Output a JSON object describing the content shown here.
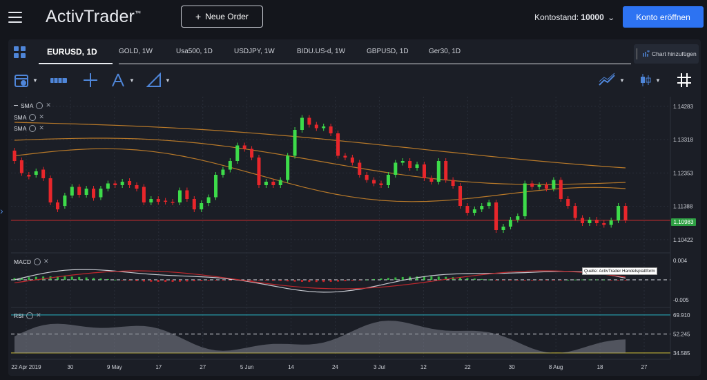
{
  "header": {
    "logo": "ActivTrader",
    "logo_mark": "™",
    "new_order_label": "Neue Order",
    "balance_label": "Kontostand:",
    "balance_value": "10000",
    "open_account_label": "Konto eröffnen"
  },
  "tabs": [
    {
      "label": "EURUSD, 1D",
      "active": true
    },
    {
      "label": "GOLD, 1W"
    },
    {
      "label": "Usa500, 1D"
    },
    {
      "label": "USDJPY, 1W"
    },
    {
      "label": "BIDU.US-d, 1W"
    },
    {
      "label": "GBPUSD, 1D"
    },
    {
      "label": "Ger30, 1D"
    }
  ],
  "add_chart_label": "Chart hinzufügen",
  "indicators": {
    "sma1": "SMA",
    "sma2": "SMA",
    "sma3": "SMA",
    "macd": "MACD",
    "rsi": "RSI"
  },
  "source_label": "Quelle: ActivTrader Handelsplattform",
  "price_axis": [
    "1.14283",
    "1.13318",
    "1.12353",
    "1.11388",
    "1.10422"
  ],
  "current_price": "1.10983",
  "macd_axis": [
    "0.004",
    "-0.005"
  ],
  "rsi_axis": [
    "69.910",
    "52.245",
    "34.585"
  ],
  "date_axis": [
    "22 Apr 2019",
    "30",
    "9 May",
    "17",
    "27",
    "5 Jun",
    "14",
    "24",
    "3 Jul",
    "12",
    "22",
    "30",
    "8 Aug",
    "18",
    "27"
  ],
  "colors": {
    "accent": "#2d73f2",
    "up": "#3ddc4a",
    "down": "#e8262b",
    "sma_orange": "#d48a2a",
    "current_line": "#d32f2f",
    "price_tag": "#2ea043"
  },
  "chart_data": {
    "type": "candlestick",
    "symbol": "EURUSD",
    "timeframe": "1D",
    "ylim": [
      1.1012,
      1.144
    ],
    "candles": [
      {
        "o": 1.13,
        "c": 1.127
      },
      {
        "o": 1.1272,
        "c": 1.1235
      },
      {
        "o": 1.123,
        "c": 1.1225
      },
      {
        "o": 1.123,
        "c": 1.124
      },
      {
        "o": 1.1245,
        "c": 1.122
      },
      {
        "o": 1.122,
        "c": 1.115
      },
      {
        "o": 1.115,
        "c": 1.113
      },
      {
        "o": 1.114,
        "c": 1.117
      },
      {
        "o": 1.117,
        "c": 1.1195
      },
      {
        "o": 1.1195,
        "c": 1.1172
      },
      {
        "o": 1.1172,
        "c": 1.119
      },
      {
        "o": 1.119,
        "c": 1.1163
      },
      {
        "o": 1.1165,
        "c": 1.119
      },
      {
        "o": 1.119,
        "c": 1.1205
      },
      {
        "o": 1.1205,
        "c": 1.12
      },
      {
        "o": 1.12,
        "c": 1.121
      },
      {
        "o": 1.1212,
        "c": 1.12
      },
      {
        "o": 1.12,
        "c": 1.119
      },
      {
        "o": 1.1195,
        "c": 1.115
      },
      {
        "o": 1.115,
        "c": 1.116
      },
      {
        "o": 1.116,
        "c": 1.1152
      },
      {
        "o": 1.1155,
        "c": 1.1152
      },
      {
        "o": 1.1152,
        "c": 1.115
      },
      {
        "o": 1.115,
        "c": 1.1185
      },
      {
        "o": 1.1185,
        "c": 1.116
      },
      {
        "o": 1.116,
        "c": 1.113
      },
      {
        "o": 1.113,
        "c": 1.1148
      },
      {
        "o": 1.1148,
        "c": 1.1165
      },
      {
        "o": 1.1165,
        "c": 1.123
      },
      {
        "o": 1.123,
        "c": 1.1245
      },
      {
        "o": 1.1245,
        "c": 1.127
      },
      {
        "o": 1.127,
        "c": 1.1315
      },
      {
        "o": 1.1315,
        "c": 1.1305
      },
      {
        "o": 1.1305,
        "c": 1.128
      },
      {
        "o": 1.128,
        "c": 1.12
      },
      {
        "o": 1.12,
        "c": 1.121
      },
      {
        "o": 1.121,
        "c": 1.12
      },
      {
        "o": 1.12,
        "c": 1.1215
      },
      {
        "o": 1.1215,
        "c": 1.1285
      },
      {
        "o": 1.1285,
        "c": 1.136
      },
      {
        "o": 1.136,
        "c": 1.1395
      },
      {
        "o": 1.1395,
        "c": 1.1375
      },
      {
        "o": 1.1375,
        "c": 1.1365
      },
      {
        "o": 1.1365,
        "c": 1.137
      },
      {
        "o": 1.137,
        "c": 1.135
      },
      {
        "o": 1.135,
        "c": 1.1285
      },
      {
        "o": 1.1285,
        "c": 1.128
      },
      {
        "o": 1.128,
        "c": 1.1265
      },
      {
        "o": 1.1265,
        "c": 1.123
      },
      {
        "o": 1.123,
        "c": 1.1215
      },
      {
        "o": 1.1215,
        "c": 1.1205
      },
      {
        "o": 1.1205,
        "c": 1.12
      },
      {
        "o": 1.12,
        "c": 1.123
      },
      {
        "o": 1.123,
        "c": 1.1265
      },
      {
        "o": 1.1265,
        "c": 1.127
      },
      {
        "o": 1.127,
        "c": 1.125
      },
      {
        "o": 1.125,
        "c": 1.126
      },
      {
        "o": 1.126,
        "c": 1.122
      },
      {
        "o": 1.122,
        "c": 1.121
      },
      {
        "o": 1.121,
        "c": 1.127
      },
      {
        "o": 1.127,
        "c": 1.1215
      },
      {
        "o": 1.1215,
        "c": 1.1198
      },
      {
        "o": 1.1198,
        "c": 1.114
      },
      {
        "o": 1.114,
        "c": 1.112
      },
      {
        "o": 1.112,
        "c": 1.113
      },
      {
        "o": 1.113,
        "c": 1.114
      },
      {
        "o": 1.114,
        "c": 1.115
      },
      {
        "o": 1.115,
        "c": 1.107
      },
      {
        "o": 1.107,
        "c": 1.108
      },
      {
        "o": 1.108,
        "c": 1.11
      },
      {
        "o": 1.11,
        "c": 1.111
      },
      {
        "o": 1.111,
        "c": 1.1205
      },
      {
        "o": 1.1205,
        "c": 1.1195
      },
      {
        "o": 1.1195,
        "c": 1.12
      },
      {
        "o": 1.12,
        "c": 1.119
      },
      {
        "o": 1.119,
        "c": 1.1215
      },
      {
        "o": 1.1215,
        "c": 1.116
      },
      {
        "o": 1.116,
        "c": 1.114
      },
      {
        "o": 1.114,
        "c": 1.1105
      },
      {
        "o": 1.1105,
        "c": 1.109
      },
      {
        "o": 1.109,
        "c": 1.11
      },
      {
        "o": 1.11,
        "c": 1.109
      },
      {
        "o": 1.109,
        "c": 1.1085
      },
      {
        "o": 1.1085,
        "c": 1.1098
      },
      {
        "o": 1.1098,
        "c": 1.114
      },
      {
        "o": 1.114,
        "c": 1.1098
      }
    ],
    "sma": [
      {
        "start": 1.1382,
        "end": 1.1265
      },
      {
        "start": 1.133,
        "end": 1.1208
      },
      {
        "start": 1.1285,
        "end": 1.1145
      }
    ]
  }
}
